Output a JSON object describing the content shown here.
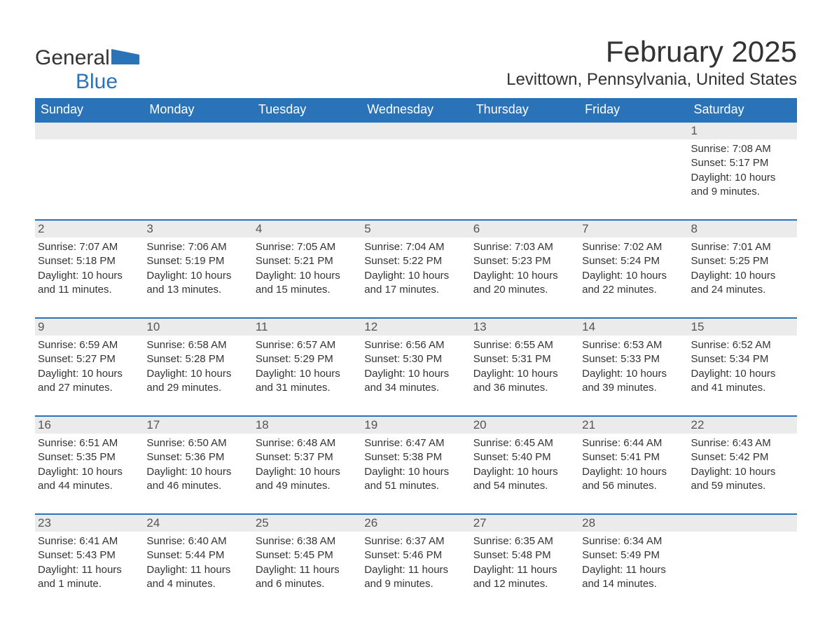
{
  "brand": {
    "word1": "General",
    "word2": "Blue"
  },
  "title": "February 2025",
  "location": "Levittown, Pennsylvania, United States",
  "colors": {
    "header_bg": "#2b73b8",
    "header_text": "#ffffff",
    "daynum_bg": "#ebebeb",
    "row_border": "#2b73b8",
    "body_text": "#333333",
    "page_bg": "#ffffff",
    "logo_blue": "#2b73b8"
  },
  "typography": {
    "title_fontsize": 42,
    "location_fontsize": 24,
    "dayheader_fontsize": 18,
    "daynum_fontsize": 17,
    "detail_fontsize": 15,
    "font_family": "Arial"
  },
  "layout": {
    "columns": 7,
    "rows": 5,
    "start_weekday": "Sunday"
  },
  "day_headers": [
    "Sunday",
    "Monday",
    "Tuesday",
    "Wednesday",
    "Thursday",
    "Friday",
    "Saturday"
  ],
  "weeks": [
    [
      null,
      null,
      null,
      null,
      null,
      null,
      {
        "n": "1",
        "sunrise": "Sunrise: 7:08 AM",
        "sunset": "Sunset: 5:17 PM",
        "daylight": "Daylight: 10 hours and 9 minutes."
      }
    ],
    [
      {
        "n": "2",
        "sunrise": "Sunrise: 7:07 AM",
        "sunset": "Sunset: 5:18 PM",
        "daylight": "Daylight: 10 hours and 11 minutes."
      },
      {
        "n": "3",
        "sunrise": "Sunrise: 7:06 AM",
        "sunset": "Sunset: 5:19 PM",
        "daylight": "Daylight: 10 hours and 13 minutes."
      },
      {
        "n": "4",
        "sunrise": "Sunrise: 7:05 AM",
        "sunset": "Sunset: 5:21 PM",
        "daylight": "Daylight: 10 hours and 15 minutes."
      },
      {
        "n": "5",
        "sunrise": "Sunrise: 7:04 AM",
        "sunset": "Sunset: 5:22 PM",
        "daylight": "Daylight: 10 hours and 17 minutes."
      },
      {
        "n": "6",
        "sunrise": "Sunrise: 7:03 AM",
        "sunset": "Sunset: 5:23 PM",
        "daylight": "Daylight: 10 hours and 20 minutes."
      },
      {
        "n": "7",
        "sunrise": "Sunrise: 7:02 AM",
        "sunset": "Sunset: 5:24 PM",
        "daylight": "Daylight: 10 hours and 22 minutes."
      },
      {
        "n": "8",
        "sunrise": "Sunrise: 7:01 AM",
        "sunset": "Sunset: 5:25 PM",
        "daylight": "Daylight: 10 hours and 24 minutes."
      }
    ],
    [
      {
        "n": "9",
        "sunrise": "Sunrise: 6:59 AM",
        "sunset": "Sunset: 5:27 PM",
        "daylight": "Daylight: 10 hours and 27 minutes."
      },
      {
        "n": "10",
        "sunrise": "Sunrise: 6:58 AM",
        "sunset": "Sunset: 5:28 PM",
        "daylight": "Daylight: 10 hours and 29 minutes."
      },
      {
        "n": "11",
        "sunrise": "Sunrise: 6:57 AM",
        "sunset": "Sunset: 5:29 PM",
        "daylight": "Daylight: 10 hours and 31 minutes."
      },
      {
        "n": "12",
        "sunrise": "Sunrise: 6:56 AM",
        "sunset": "Sunset: 5:30 PM",
        "daylight": "Daylight: 10 hours and 34 minutes."
      },
      {
        "n": "13",
        "sunrise": "Sunrise: 6:55 AM",
        "sunset": "Sunset: 5:31 PM",
        "daylight": "Daylight: 10 hours and 36 minutes."
      },
      {
        "n": "14",
        "sunrise": "Sunrise: 6:53 AM",
        "sunset": "Sunset: 5:33 PM",
        "daylight": "Daylight: 10 hours and 39 minutes."
      },
      {
        "n": "15",
        "sunrise": "Sunrise: 6:52 AM",
        "sunset": "Sunset: 5:34 PM",
        "daylight": "Daylight: 10 hours and 41 minutes."
      }
    ],
    [
      {
        "n": "16",
        "sunrise": "Sunrise: 6:51 AM",
        "sunset": "Sunset: 5:35 PM",
        "daylight": "Daylight: 10 hours and 44 minutes."
      },
      {
        "n": "17",
        "sunrise": "Sunrise: 6:50 AM",
        "sunset": "Sunset: 5:36 PM",
        "daylight": "Daylight: 10 hours and 46 minutes."
      },
      {
        "n": "18",
        "sunrise": "Sunrise: 6:48 AM",
        "sunset": "Sunset: 5:37 PM",
        "daylight": "Daylight: 10 hours and 49 minutes."
      },
      {
        "n": "19",
        "sunrise": "Sunrise: 6:47 AM",
        "sunset": "Sunset: 5:38 PM",
        "daylight": "Daylight: 10 hours and 51 minutes."
      },
      {
        "n": "20",
        "sunrise": "Sunrise: 6:45 AM",
        "sunset": "Sunset: 5:40 PM",
        "daylight": "Daylight: 10 hours and 54 minutes."
      },
      {
        "n": "21",
        "sunrise": "Sunrise: 6:44 AM",
        "sunset": "Sunset: 5:41 PM",
        "daylight": "Daylight: 10 hours and 56 minutes."
      },
      {
        "n": "22",
        "sunrise": "Sunrise: 6:43 AM",
        "sunset": "Sunset: 5:42 PM",
        "daylight": "Daylight: 10 hours and 59 minutes."
      }
    ],
    [
      {
        "n": "23",
        "sunrise": "Sunrise: 6:41 AM",
        "sunset": "Sunset: 5:43 PM",
        "daylight": "Daylight: 11 hours and 1 minute."
      },
      {
        "n": "24",
        "sunrise": "Sunrise: 6:40 AM",
        "sunset": "Sunset: 5:44 PM",
        "daylight": "Daylight: 11 hours and 4 minutes."
      },
      {
        "n": "25",
        "sunrise": "Sunrise: 6:38 AM",
        "sunset": "Sunset: 5:45 PM",
        "daylight": "Daylight: 11 hours and 6 minutes."
      },
      {
        "n": "26",
        "sunrise": "Sunrise: 6:37 AM",
        "sunset": "Sunset: 5:46 PM",
        "daylight": "Daylight: 11 hours and 9 minutes."
      },
      {
        "n": "27",
        "sunrise": "Sunrise: 6:35 AM",
        "sunset": "Sunset: 5:48 PM",
        "daylight": "Daylight: 11 hours and 12 minutes."
      },
      {
        "n": "28",
        "sunrise": "Sunrise: 6:34 AM",
        "sunset": "Sunset: 5:49 PM",
        "daylight": "Daylight: 11 hours and 14 minutes."
      },
      null
    ]
  ]
}
